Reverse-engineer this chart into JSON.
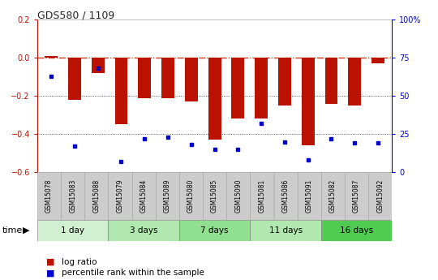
{
  "title": "GDS580 / 1109",
  "samples": [
    "GSM15078",
    "GSM15083",
    "GSM15088",
    "GSM15079",
    "GSM15084",
    "GSM15089",
    "GSM15080",
    "GSM15085",
    "GSM15090",
    "GSM15081",
    "GSM15086",
    "GSM15091",
    "GSM15082",
    "GSM15087",
    "GSM15092"
  ],
  "log_ratio": [
    0.01,
    -0.22,
    -0.08,
    -0.35,
    -0.21,
    -0.21,
    -0.23,
    -0.43,
    -0.32,
    -0.32,
    -0.25,
    -0.46,
    -0.24,
    -0.25,
    -0.03
  ],
  "pct_rank": [
    63,
    17,
    68,
    7,
    22,
    23,
    18,
    15,
    15,
    32,
    20,
    8,
    22,
    19,
    19
  ],
  "groups": [
    {
      "label": "1 day",
      "start": 0,
      "end": 3,
      "color": "#d0f0d0"
    },
    {
      "label": "3 days",
      "start": 3,
      "end": 6,
      "color": "#b0e8b0"
    },
    {
      "label": "7 days",
      "start": 6,
      "end": 9,
      "color": "#90e090"
    },
    {
      "label": "11 days",
      "start": 9,
      "end": 12,
      "color": "#b0e8b0"
    },
    {
      "label": "16 days",
      "start": 12,
      "end": 15,
      "color": "#50cc50"
    }
  ],
  "ylim_left": [
    -0.6,
    0.2
  ],
  "ylim_right": [
    0,
    100
  ],
  "yticks_left": [
    -0.6,
    -0.4,
    -0.2,
    0.0,
    0.2
  ],
  "yticks_right": [
    0,
    25,
    50,
    75,
    100
  ],
  "bar_color": "#bb1100",
  "dot_color": "#0000cc",
  "hline_color": "#cc2200",
  "grid_color": "#333333",
  "sample_box_color": "#cccccc",
  "legend_labels": [
    "log ratio",
    "percentile rank within the sample"
  ]
}
